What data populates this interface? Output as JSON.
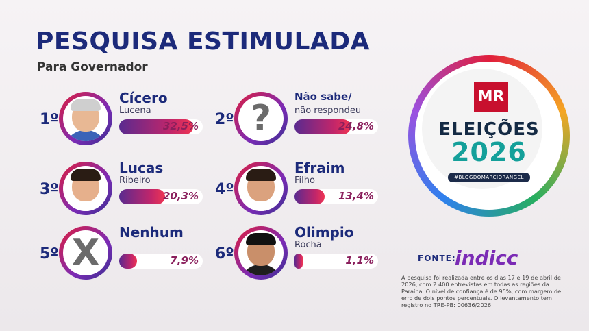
{
  "title": "PESQUISA ESTIMULADA",
  "subtitle": "Para Governador",
  "chart_data": {
    "type": "bar",
    "title": "PESQUISA ESTIMULADA",
    "subtitle": "Para Governador",
    "categories": [
      "Cícero Lucena",
      "Não sabe/não respondeu",
      "Lucas Ribeiro",
      "Efraim Filho",
      "Nenhum",
      "Olimpio Rocha"
    ],
    "values": [
      32.5,
      24.8,
      20.3,
      13.4,
      7.9,
      1.1
    ],
    "ylim": [
      0,
      35
    ],
    "unit": "%"
  },
  "candidates": [
    {
      "rank": "1º",
      "name": "Cícero",
      "surname": "Lucena",
      "value": 32.5,
      "label": "32,5%",
      "avatar": "person-photo"
    },
    {
      "rank": "2º",
      "name": "Não sabe/",
      "surname": "não respondeu",
      "value": 24.8,
      "label": "24,8%",
      "avatar": "question-mark-icon",
      "glyph": "?"
    },
    {
      "rank": "3º",
      "name": "Lucas",
      "surname": "Ribeiro",
      "value": 20.3,
      "label": "20,3%",
      "avatar": "person-photo"
    },
    {
      "rank": "4º",
      "name": "Efraim",
      "surname": "Filho",
      "value": 13.4,
      "label": "13,4%",
      "avatar": "person-photo"
    },
    {
      "rank": "5º",
      "name": "Nenhum",
      "surname": "",
      "value": 7.9,
      "label": "7,9%",
      "avatar": "x-mark-icon",
      "glyph": "X"
    },
    {
      "rank": "6º",
      "name": "Olimpio",
      "surname": "Rocha",
      "value": 1.1,
      "label": "1,1%",
      "avatar": "person-photo"
    }
  ],
  "seal": {
    "logo": "MR",
    "line1": "ELEIÇÕES",
    "line2": "2026",
    "hashtag": "#BLOGDOMARCIORANGEL"
  },
  "source": {
    "label": "FONTE:",
    "brand": "indicc"
  },
  "note": "A pesquisa foi realizada entre os dias 17 e 19 de abril de 2026, com 2.400 entrevistas em todas as regiões da Paraíba. O nível de confiança é de 95%, com margem de erro de dois pontos percentuais. O levantamento tem registro no TRE-PB: 00636/2026.",
  "colors": {
    "title": "#1c2a7a",
    "bar_start": "#5a2a8f",
    "bar_end": "#ef3553",
    "accent": "#c8102e"
  }
}
